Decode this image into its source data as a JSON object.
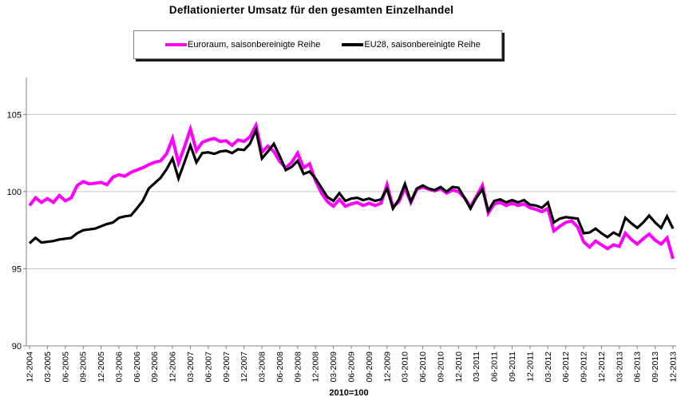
{
  "chart": {
    "title": "Deflationierter Umsatz für den gesamten Einzelhandel",
    "x_axis_title": "2010=100"
  },
  "legend": {
    "items": [
      {
        "id": "euroraum",
        "label": "Euroraum, saisonbereinigte Reihe",
        "color": "#FF00FF"
      },
      {
        "id": "eu28",
        "label": "EU28, saisonbereinigte Reihe",
        "color": "#000000"
      }
    ]
  },
  "colors": {
    "background": "#FFFFFF",
    "gridline": "#C6C6C6",
    "axis": "#808080",
    "tick_text": "#000000"
  },
  "chart_data": {
    "type": "line",
    "title": "Deflationierter Umsatz für den gesamten Einzelhandel",
    "xlabel": "2010=100",
    "ylabel": "",
    "x_unit": "monthly from 12-2004 to 12-2013",
    "x_tick_labels": [
      "12-2004",
      "03-2005",
      "06-2005",
      "09-2005",
      "12-2005",
      "03-2006",
      "06-2006",
      "09-2006",
      "12-2006",
      "03-2007",
      "06-2007",
      "09-2007",
      "12-2007",
      "03-2008",
      "06-2008",
      "09-2008",
      "12-2008",
      "03-2009",
      "06-2009",
      "09-2009",
      "12-2009",
      "03-2010",
      "06-2010",
      "09-2010",
      "12-2010",
      "03-2011",
      "06-2011",
      "09-2011",
      "12-2011",
      "03-2012",
      "06-2012",
      "09-2012",
      "12-2012",
      "03-2013",
      "06-2013",
      "09-2013",
      "12-2013"
    ],
    "y_ticks": [
      90,
      95,
      100,
      105
    ],
    "ylim": [
      90,
      107.4
    ],
    "grid": true,
    "legend_position": "top",
    "series": [
      {
        "id": "euroraum",
        "name": "Euroraum, saisonbereinigte Reihe",
        "color": "#FF00FF",
        "stroke_width": 4,
        "values": [
          99.1,
          99.6,
          99.3,
          99.55,
          99.3,
          99.75,
          99.4,
          99.6,
          100.4,
          100.65,
          100.5,
          100.55,
          100.6,
          100.45,
          100.95,
          101.1,
          101.0,
          101.25,
          101.4,
          101.55,
          101.75,
          101.9,
          102.0,
          102.45,
          103.45,
          101.85,
          102.9,
          104.05,
          102.65,
          103.2,
          103.35,
          103.45,
          103.25,
          103.3,
          103.0,
          103.35,
          103.25,
          103.55,
          104.3,
          102.55,
          102.95,
          102.6,
          101.95,
          101.55,
          101.9,
          102.5,
          101.55,
          101.8,
          100.7,
          99.9,
          99.35,
          99.05,
          99.5,
          99.05,
          99.2,
          99.3,
          99.1,
          99.25,
          99.1,
          99.25,
          100.45,
          99.0,
          99.35,
          100.25,
          99.3,
          100.15,
          100.3,
          100.15,
          100.05,
          100.2,
          99.9,
          100.1,
          100.0,
          99.6,
          99.0,
          99.7,
          100.4,
          98.6,
          99.2,
          99.3,
          99.1,
          99.25,
          99.1,
          99.2,
          98.95,
          98.85,
          98.7,
          98.9,
          97.45,
          97.75,
          98.0,
          98.1,
          97.7,
          96.75,
          96.4,
          96.8,
          96.55,
          96.3,
          96.55,
          96.45,
          97.3,
          96.9,
          96.6,
          96.95,
          97.25,
          96.85,
          96.6,
          97.0,
          95.65
        ]
      },
      {
        "id": "eu28",
        "name": "EU28, saisonbereinigte Reihe",
        "color": "#000000",
        "stroke_width": 3.2,
        "values": [
          96.65,
          97.0,
          96.7,
          96.75,
          96.8,
          96.9,
          96.95,
          97.0,
          97.3,
          97.5,
          97.55,
          97.6,
          97.75,
          97.9,
          98.0,
          98.3,
          98.4,
          98.45,
          98.9,
          99.4,
          100.2,
          100.55,
          100.9,
          101.45,
          102.15,
          100.85,
          101.9,
          103.0,
          101.9,
          102.5,
          102.55,
          102.45,
          102.6,
          102.65,
          102.5,
          102.75,
          102.7,
          103.1,
          104.0,
          102.15,
          102.6,
          103.1,
          102.3,
          101.4,
          101.6,
          102.0,
          101.15,
          101.3,
          100.85,
          100.25,
          99.65,
          99.4,
          99.9,
          99.4,
          99.55,
          99.6,
          99.45,
          99.55,
          99.4,
          99.5,
          100.2,
          98.9,
          99.5,
          100.5,
          99.35,
          100.2,
          100.4,
          100.2,
          100.1,
          100.3,
          100.0,
          100.3,
          100.25,
          99.6,
          98.9,
          99.6,
          100.15,
          98.75,
          99.4,
          99.5,
          99.3,
          99.45,
          99.3,
          99.45,
          99.15,
          99.1,
          98.95,
          99.3,
          98.0,
          98.25,
          98.35,
          98.3,
          98.25,
          97.3,
          97.35,
          97.6,
          97.3,
          97.05,
          97.35,
          97.15,
          98.3,
          97.95,
          97.65,
          98.0,
          98.45,
          98.0,
          97.65,
          98.4,
          97.6
        ]
      }
    ]
  }
}
